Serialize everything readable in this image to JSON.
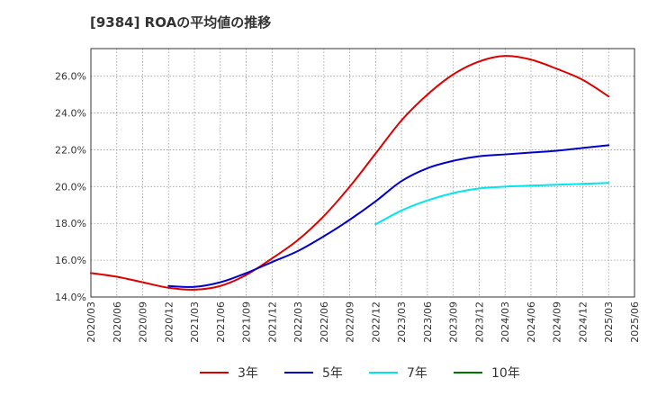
{
  "chart_data": {
    "type": "line",
    "title": "[9384]  ROAの平均値の推移",
    "xlabel": "",
    "ylabel": "",
    "ylim": [
      14.0,
      27.5
    ],
    "yticks": [
      14.0,
      16.0,
      18.0,
      20.0,
      22.0,
      24.0,
      26.0
    ],
    "ytick_labels": [
      "14.0%",
      "16.0%",
      "18.0%",
      "20.0%",
      "22.0%",
      "24.0%",
      "26.0%"
    ],
    "x": [
      "2020/03",
      "2020/06",
      "2020/09",
      "2020/12",
      "2021/03",
      "2021/06",
      "2021/09",
      "2021/12",
      "2022/03",
      "2022/06",
      "2022/09",
      "2022/12",
      "2023/03",
      "2023/06",
      "2023/09",
      "2023/12",
      "2024/03",
      "2024/06",
      "2024/09",
      "2024/12",
      "2025/03",
      "2025/06"
    ],
    "grid": true,
    "legend_position": "bottom",
    "series": [
      {
        "name": "3年",
        "color": "#dd0000",
        "values": [
          15.3,
          15.1,
          14.8,
          14.5,
          14.4,
          14.6,
          15.2,
          16.1,
          17.1,
          18.4,
          20.0,
          21.8,
          23.6,
          25.0,
          26.1,
          26.8,
          27.1,
          26.9,
          26.4,
          25.8,
          24.9,
          null
        ]
      },
      {
        "name": "5年",
        "color": "#0000cc",
        "values": [
          null,
          null,
          null,
          14.6,
          14.55,
          14.8,
          15.3,
          15.9,
          16.5,
          17.3,
          18.2,
          19.2,
          20.3,
          21.0,
          21.4,
          21.65,
          21.75,
          21.85,
          21.95,
          22.1,
          22.25,
          null
        ]
      },
      {
        "name": "7年",
        "color": "#00e5ee",
        "values": [
          null,
          null,
          null,
          null,
          null,
          null,
          null,
          null,
          null,
          null,
          null,
          17.95,
          18.7,
          19.25,
          19.65,
          19.9,
          20.0,
          20.05,
          20.1,
          20.15,
          20.2,
          null
        ]
      },
      {
        "name": "10年",
        "color": "#007700",
        "values": [
          null,
          null,
          null,
          null,
          null,
          null,
          null,
          null,
          null,
          null,
          null,
          null,
          null,
          null,
          null,
          null,
          null,
          null,
          null,
          null,
          null,
          null
        ]
      }
    ]
  }
}
